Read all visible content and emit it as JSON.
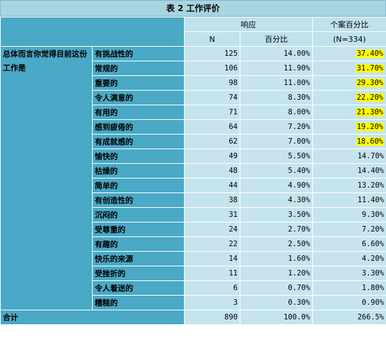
{
  "title": "表 2  工作评价",
  "header": {
    "blank_mark": "↵",
    "response": "响应",
    "n": "N",
    "percent": "百分比",
    "case_percent": "个案百分比",
    "case_n": "(N=334)"
  },
  "side_label": "总体而言你觉得目前这份工作是",
  "rows": [
    {
      "label": "有挑战性的",
      "n": "125",
      "pct": "14.00%",
      "case": "37.40%",
      "highlight": true
    },
    {
      "label": "常规的",
      "n": "106",
      "pct": "11.90%",
      "case": "31.70%",
      "highlight": true
    },
    {
      "label": "重要的",
      "n": "98",
      "pct": "11.00%",
      "case": "29.30%",
      "highlight": true
    },
    {
      "label": "令人满意的",
      "n": "74",
      "pct": "8.30%",
      "case": "22.20%",
      "highlight": true
    },
    {
      "label": "有用的",
      "n": "71",
      "pct": "8.00%",
      "case": "21.30%",
      "highlight": true
    },
    {
      "label": "感到疲倦的",
      "n": "64",
      "pct": "7.20%",
      "case": "19.20%",
      "highlight": true
    },
    {
      "label": "有成就感的",
      "n": "62",
      "pct": "7.00%",
      "case": "18.60%",
      "highlight": true
    },
    {
      "label": "愉快的",
      "n": "49",
      "pct": "5.50%",
      "case": "14.70%",
      "highlight": false
    },
    {
      "label": "枯燥的",
      "n": "48",
      "pct": "5.40%",
      "case": "14.40%",
      "highlight": false
    },
    {
      "label": "简单的",
      "n": "44",
      "pct": "4.90%",
      "case": "13.20%",
      "highlight": false
    },
    {
      "label": "有创造性的",
      "n": "38",
      "pct": "4.30%",
      "case": "11.40%",
      "highlight": false
    },
    {
      "label": "沉闷的",
      "n": "31",
      "pct": "3.50%",
      "case": "9.30%",
      "highlight": false
    },
    {
      "label": "受尊重的",
      "n": "24",
      "pct": "2.70%",
      "case": "7.20%",
      "highlight": false
    },
    {
      "label": "有趣的",
      "n": "22",
      "pct": "2.50%",
      "case": "6.60%",
      "highlight": false
    },
    {
      "label": "快乐的来源",
      "n": "14",
      "pct": "1.60%",
      "case": "4.20%",
      "highlight": false
    },
    {
      "label": "受挫折的",
      "n": "11",
      "pct": "1.20%",
      "case": "3.30%",
      "highlight": false
    },
    {
      "label": "令人着迷的",
      "n": "6",
      "pct": "0.70%",
      "case": "1.80%",
      "highlight": false
    },
    {
      "label": "糟糕的",
      "n": "3",
      "pct": "0.30%",
      "case": "0.90%",
      "highlight": false
    }
  ],
  "total": {
    "label": "合计",
    "n": "890",
    "pct": "100.0%",
    "case": "266.5%"
  },
  "colors": {
    "header": "#4aa9c6",
    "cell": "#c5e4ee",
    "highlight": "#ffff00"
  }
}
